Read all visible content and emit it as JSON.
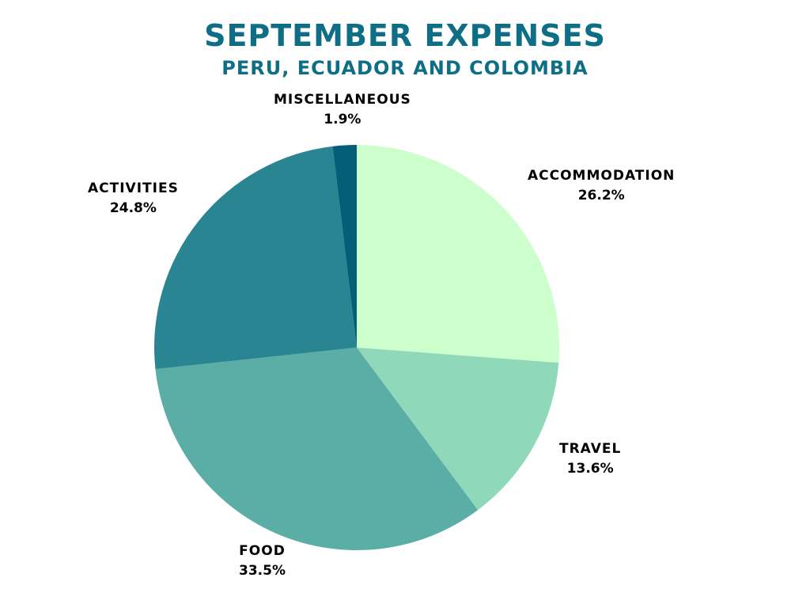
{
  "chart_data": {
    "type": "pie",
    "title": "SEPTEMBER EXPENSES",
    "subtitle": "PERU, ECUADOR AND COLOMBIA",
    "unit": "%",
    "slices": [
      {
        "label": "ACCOMMODATION",
        "value": 26.2,
        "color": "#ccffcc"
      },
      {
        "label": "TRAVEL",
        "value": 13.6,
        "color": "#8fd8b9"
      },
      {
        "label": "FOOD",
        "value": 33.5,
        "color": "#5aaea6"
      },
      {
        "label": "ACTIVITIES",
        "value": 24.8,
        "color": "#288591"
      },
      {
        "label": "MISCELLANEOUS",
        "value": 1.9,
        "color": "#055e77"
      }
    ],
    "start_angle": "12 o'clock",
    "direction": "clockwise",
    "legend": "none",
    "title_color": "#0d6e85"
  }
}
